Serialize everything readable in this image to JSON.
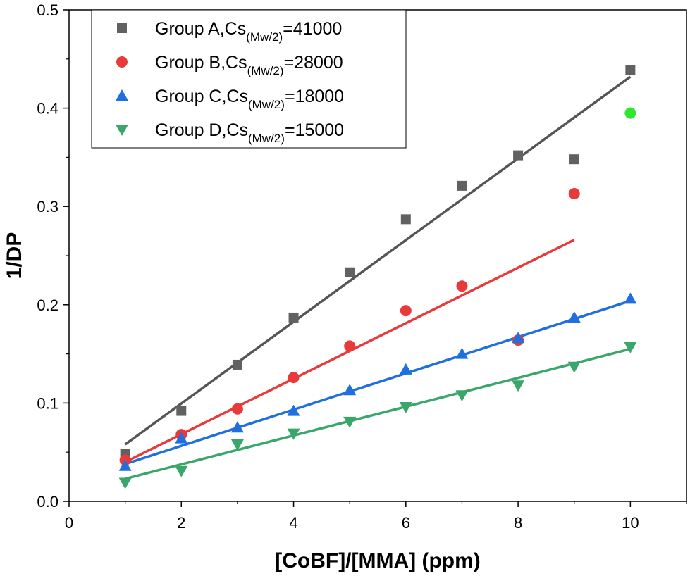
{
  "chart_data": {
    "type": "scatter",
    "xlabel": "[CoBF]/[MMA] (ppm)",
    "ylabel": "1/DP",
    "xlim": [
      0,
      11
    ],
    "ylim": [
      0,
      0.5
    ],
    "x_ticks": [
      0,
      2,
      4,
      6,
      8,
      10
    ],
    "x_tick_labels": [
      "0",
      "2",
      "4",
      "6",
      "8",
      "10"
    ],
    "y_ticks": [
      0.0,
      0.1,
      0.2,
      0.3,
      0.4,
      0.5
    ],
    "y_tick_labels": [
      "0.0",
      "0.1",
      "0.2",
      "0.3",
      "0.4",
      "0.5"
    ],
    "grid": false,
    "legend_position": "top-left",
    "series": [
      {
        "name": "Group A,Cs(Mw/2)=41000",
        "legend_main": "Group A,Cs",
        "legend_sub": "(Mw/2)",
        "legend_tail": "=41000",
        "marker": "square",
        "color": "#616161",
        "line_color": "#555555",
        "x": [
          1,
          2,
          3,
          4,
          5,
          6,
          7,
          8,
          9,
          10
        ],
        "y": [
          0.048,
          0.092,
          0.139,
          0.187,
          0.233,
          0.287,
          0.321,
          0.352,
          0.348,
          0.439
        ],
        "fit": {
          "x": [
            1,
            10
          ],
          "y": [
            0.058,
            0.432
          ]
        }
      },
      {
        "name": "Group B,Cs(Mw/2)=28000",
        "legend_main": "Group B,Cs",
        "legend_sub": "(Mw/2)",
        "legend_tail": "=28000",
        "marker": "circle",
        "color": "#e8393b",
        "line_color": "#e8393b",
        "x": [
          1,
          2,
          3,
          4,
          5,
          6,
          7,
          8,
          9
        ],
        "y": [
          0.042,
          0.068,
          0.094,
          0.126,
          0.158,
          0.194,
          0.219,
          0.164,
          0.313
        ],
        "fit": {
          "x": [
            1,
            9
          ],
          "y": [
            0.04,
            0.266
          ]
        }
      },
      {
        "name": "Group C,Cs(Mw/2)=18000",
        "legend_main": "Group C,Cs",
        "legend_sub": "(Mw/2)",
        "legend_tail": "=18000",
        "marker": "triangle-up",
        "color": "#1f6fde",
        "line_color": "#1f6fde",
        "x": [
          1,
          2,
          3,
          4,
          5,
          6,
          7,
          8,
          9,
          10
        ],
        "y": [
          0.036,
          0.064,
          0.075,
          0.092,
          0.113,
          0.134,
          0.15,
          0.166,
          0.187,
          0.206
        ],
        "fit": {
          "x": [
            1,
            10
          ],
          "y": [
            0.038,
            0.204
          ]
        }
      },
      {
        "name": "Group D,Cs(Mw/2)=15000",
        "legend_main": "Group D,Cs",
        "legend_sub": "(Mw/2)",
        "legend_tail": "=15000",
        "marker": "triangle-down",
        "color": "#3aa66a",
        "line_color": "#3aa66a",
        "x": [
          1,
          2,
          3,
          4,
          5,
          6,
          7,
          8,
          9,
          10
        ],
        "y": [
          0.019,
          0.031,
          0.058,
          0.069,
          0.081,
          0.096,
          0.108,
          0.118,
          0.137,
          0.157
        ],
        "fit": {
          "x": [
            1,
            10
          ],
          "y": [
            0.023,
            0.155
          ]
        }
      }
    ],
    "extra_points": [
      {
        "x": 10,
        "y": 0.395,
        "marker": "circle",
        "color": "#2ee82e"
      }
    ]
  }
}
